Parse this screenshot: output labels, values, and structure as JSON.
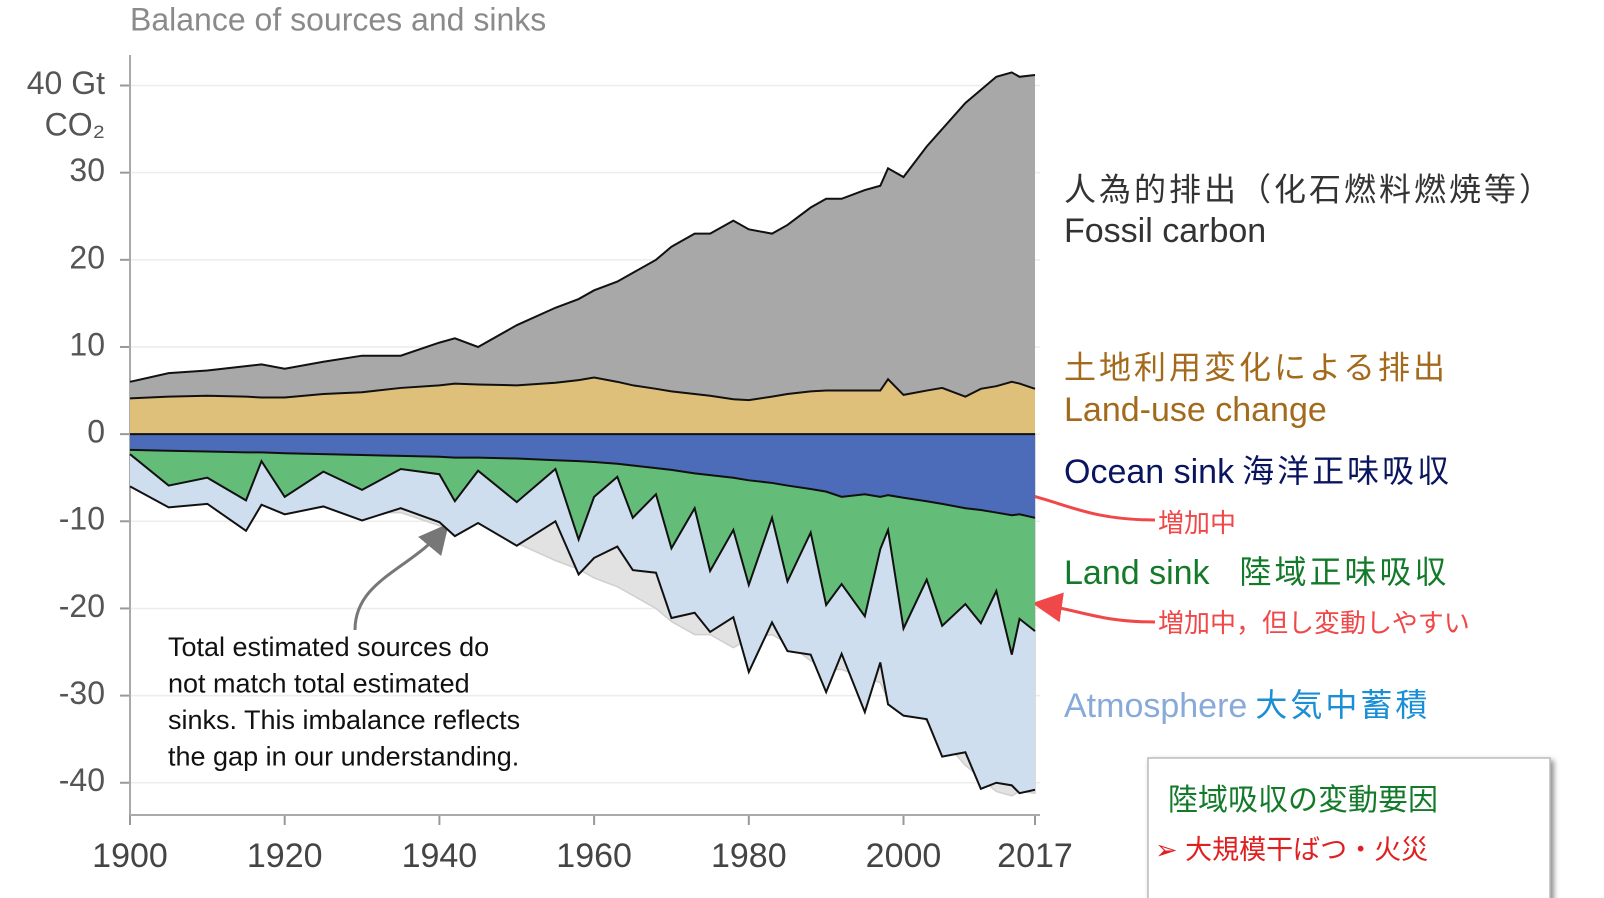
{
  "chart_data": {
    "type": "stacked_area",
    "title": "Balance of sources and sinks",
    "y_unit": "CO₂",
    "x": [
      1900,
      1905,
      1910,
      1915,
      1917,
      1920,
      1925,
      1930,
      1935,
      1940,
      1942,
      1945,
      1950,
      1955,
      1958,
      1960,
      1963,
      1965,
      1968,
      1970,
      1973,
      1975,
      1978,
      1980,
      1983,
      1985,
      1988,
      1990,
      1992,
      1995,
      1997,
      1998,
      2000,
      2003,
      2005,
      2008,
      2010,
      2012,
      2014,
      2015,
      2017
    ],
    "xlim": [
      1900,
      2017
    ],
    "xticks": [
      1900,
      1920,
      1940,
      1960,
      1980,
      2000,
      2017
    ],
    "ylim": [
      -43.7,
      43.5
    ],
    "yticks": [
      {
        "value": 40,
        "label": "40 Gt"
      },
      30,
      20,
      10,
      0,
      -10,
      -20,
      -30,
      -40
    ],
    "grid": true,
    "series": [
      {
        "name": "Land-use change",
        "color": "#dfc07a",
        "label_color": "#a36a1c",
        "stack": "sources",
        "values": [
          4.1,
          4.3,
          4.4,
          4.3,
          4.2,
          4.2,
          4.6,
          4.8,
          5.3,
          5.6,
          5.8,
          5.7,
          5.6,
          5.9,
          6.2,
          6.5,
          6.0,
          5.6,
          5.2,
          4.9,
          4.6,
          4.4,
          4.0,
          3.9,
          4.3,
          4.6,
          4.9,
          5.0,
          5.0,
          5.0,
          5.0,
          6.3,
          4.5,
          5.0,
          5.3,
          4.3,
          5.2,
          5.5,
          6.0,
          5.8,
          5.2
        ]
      },
      {
        "name": "Fossil carbon",
        "color": "#a8a8a8",
        "label_color": "#333333",
        "stack": "sources",
        "values": [
          1.9,
          2.7,
          2.9,
          3.5,
          3.8,
          3.3,
          3.7,
          4.2,
          3.7,
          4.9,
          5.2,
          4.3,
          6.9,
          8.6,
          9.3,
          10.0,
          11.5,
          12.9,
          14.8,
          16.6,
          18.4,
          18.6,
          20.5,
          19.6,
          18.7,
          19.4,
          21.1,
          22.0,
          22.0,
          23.0,
          23.5,
          24.2,
          25.0,
          28.0,
          29.7,
          33.7,
          34.3,
          35.5,
          35.5,
          35.2,
          36.0
        ]
      },
      {
        "name": "Ocean sink",
        "color": "#4c6bb8",
        "label_color": "#0a1560",
        "stack": "sinks",
        "values": [
          -1.8,
          -1.9,
          -2,
          -2.1,
          -2.1,
          -2.2,
          -2.3,
          -2.4,
          -2.5,
          -2.6,
          -2.7,
          -2.7,
          -2.8,
          -3.0,
          -3.1,
          -3.2,
          -3.4,
          -3.6,
          -3.9,
          -4.1,
          -4.5,
          -4.7,
          -5.0,
          -5.3,
          -5.6,
          -5.9,
          -6.3,
          -6.6,
          -7.2,
          -6.9,
          -7.2,
          -7.0,
          -7.3,
          -7.7,
          -8.0,
          -8.5,
          -8.7,
          -9.0,
          -9.3,
          -9.2,
          -9.6
        ]
      },
      {
        "name": "Land sink",
        "color": "#63bd78",
        "label_color": "#137a2a",
        "stack": "sinks",
        "values": [
          -0.5,
          -4,
          -3,
          -5.5,
          -1,
          -5,
          -2,
          -4,
          -1.5,
          -2,
          -5,
          -1.5,
          -5,
          -1,
          -9,
          -4,
          -1.5,
          -6,
          -3,
          -9,
          -4,
          -11,
          -6,
          -12,
          -4,
          -11,
          -5,
          -13,
          -10,
          -14,
          -6,
          -4,
          -15,
          -9,
          -14,
          -11,
          -13,
          -9,
          -16,
          -12,
          -13
        ]
      },
      {
        "name": "Atmosphere",
        "color": "#cfdeee",
        "label_color": "#88aad8",
        "stack": "sinks",
        "values": [
          -3.7,
          -2.5,
          -3,
          -3.5,
          -5,
          -2,
          -4,
          -3.5,
          -4.5,
          -5.5,
          -4,
          -6,
          -5,
          -6,
          -4,
          -7,
          -8,
          -6,
          -9,
          -8,
          -12,
          -7,
          -10,
          -10,
          -12,
          -8,
          -14,
          -10,
          -8,
          -11,
          -13,
          -20,
          -10,
          -16,
          -15,
          -17,
          -19,
          -22,
          -15,
          -20,
          -18.2
        ]
      }
    ],
    "series_labels_ja": [
      "土地利用変化による排出",
      "人為的排出（化石燃料燃焼等）",
      "海洋正味吸収",
      "陸域正味吸収",
      "大気中蓄積"
    ],
    "annotations": {
      "ocean_trend": "増加中",
      "land_trend": "増加中，但し変動しやすい",
      "imbalance_note": [
        "Total estimated sources do",
        "not match total estimated",
        "sinks. This imbalance reflects",
        "the gap in our understanding."
      ],
      "box_title": "陸域吸収の変動要因",
      "box_item": "➢ 大規模干ばつ・火災"
    }
  }
}
